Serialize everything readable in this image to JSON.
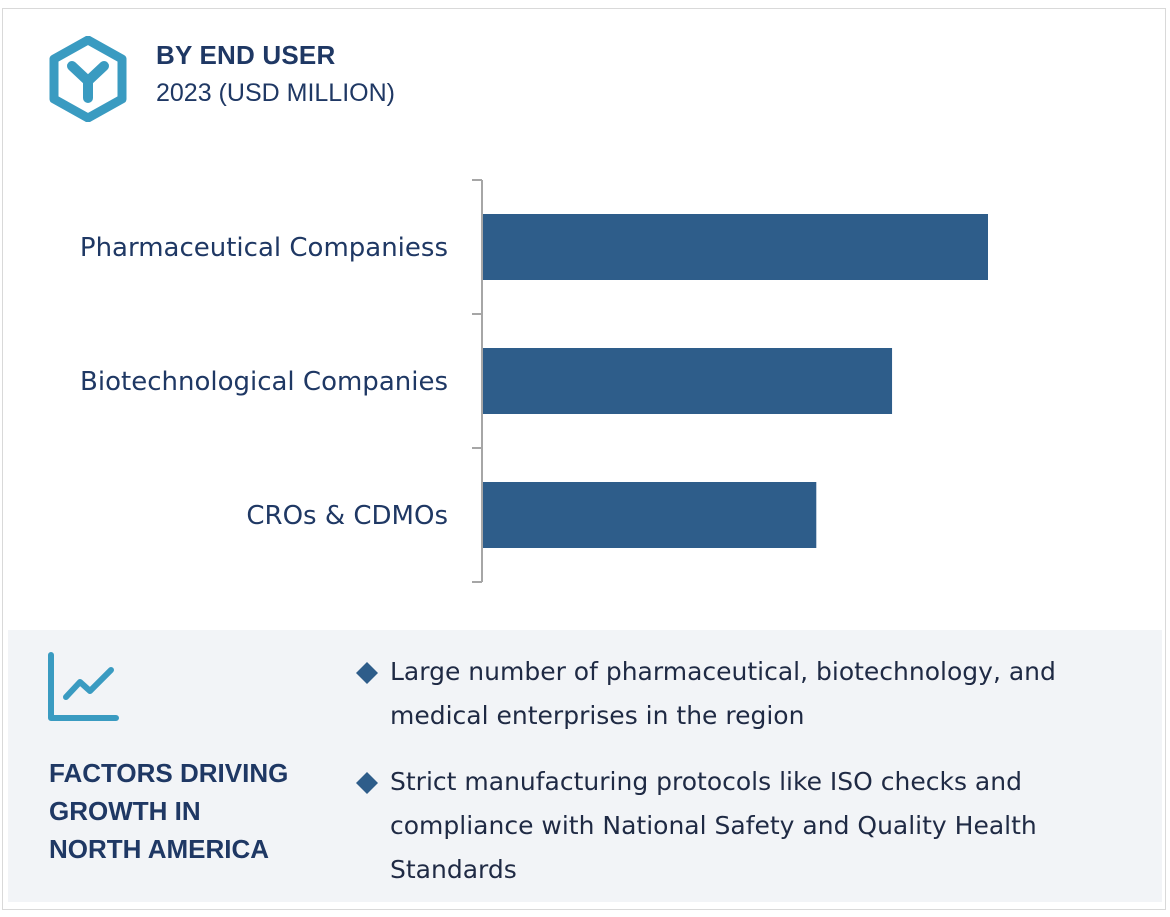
{
  "header": {
    "title": "BY END USER",
    "subtitle": "2023 (USD MILLION)",
    "logo_icon": "hexagon-y-icon"
  },
  "colors": {
    "bar": "#2e5d8a",
    "accent": "#3a9bc1",
    "title": "#1f3864",
    "axis": "#a6a6a6",
    "panel_bg": "#f2f4f7"
  },
  "chart_data": {
    "type": "bar",
    "orientation": "horizontal",
    "title": "BY END USER",
    "subtitle": "2023 (USD MILLION)",
    "categories": [
      "Pharmaceutical Companiess",
      "Biotechnological Companies",
      "CROs & CDMOs"
    ],
    "values": [
      100,
      81,
      66
    ],
    "value_units": "relative (no axis values shown)",
    "xlim": [
      0,
      100
    ],
    "xlabel": "",
    "ylabel": "",
    "grid": false,
    "legend": "none"
  },
  "factors": {
    "icon": "trend-chart-icon",
    "title_lines": [
      "FACTORS DRIVING",
      "GROWTH IN",
      "NORTH AMERICA"
    ],
    "bullets": [
      "Large number of pharmaceutical, biotechnology, and medical enterprises in the region",
      "Strict manufacturing protocols like ISO checks and compliance with National Safety and Quality Health Standards"
    ]
  }
}
